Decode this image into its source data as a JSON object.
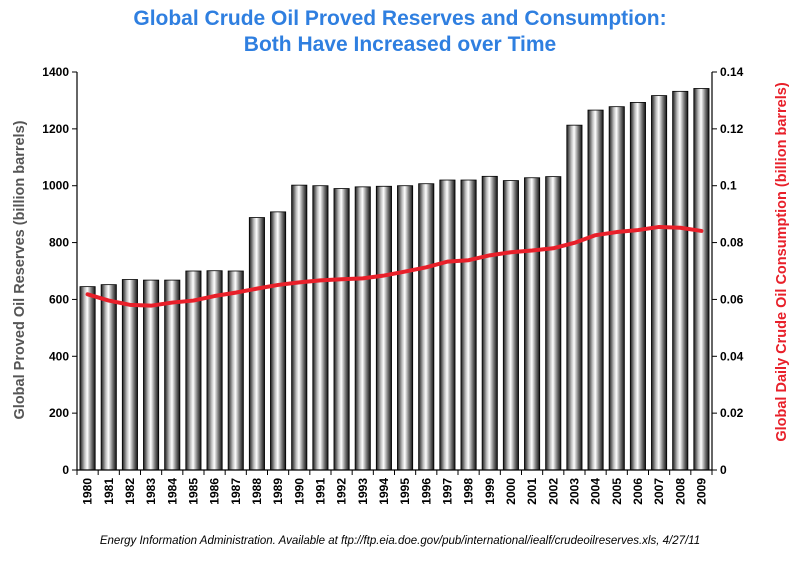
{
  "chart_data": {
    "type": "bar",
    "title_line1": "Global Crude Oil Proved Reserves and Consumption:",
    "title_line2": "Both Have Increased over Time",
    "categories": [
      "1980",
      "1981",
      "1982",
      "1983",
      "1984",
      "1985",
      "1986",
      "1987",
      "1988",
      "1989",
      "1990",
      "1991",
      "1992",
      "1993",
      "1994",
      "1995",
      "1996",
      "1997",
      "1998",
      "1999",
      "2000",
      "2001",
      "2002",
      "2003",
      "2004",
      "2005",
      "2006",
      "2007",
      "2008",
      "2009"
    ],
    "series": [
      {
        "name": "",
        "type": "bar",
        "axis": "left",
        "values": [
          645,
          652,
          670,
          668,
          668,
          700,
          701,
          700,
          888,
          908,
          1002,
          1000,
          990,
          996,
          998,
          1000,
          1007,
          1020,
          1020,
          1033,
          1018,
          1028,
          1032,
          1213,
          1266,
          1278,
          1293,
          1317,
          1332,
          1342
        ]
      },
      {
        "name": "",
        "type": "line",
        "axis": "right",
        "values": [
          0.0618,
          0.0596,
          0.0581,
          0.0578,
          0.0589,
          0.0596,
          0.0612,
          0.0624,
          0.0638,
          0.0651,
          0.066,
          0.0667,
          0.0671,
          0.0674,
          0.0684,
          0.0698,
          0.0713,
          0.0733,
          0.0738,
          0.0755,
          0.0766,
          0.0772,
          0.078,
          0.0799,
          0.0826,
          0.0837,
          0.0844,
          0.0855,
          0.0852,
          0.0841
        ]
      }
    ],
    "ylabel": "Global Proved Oil Reserves (billion barrels)",
    "y2label": "Global Daily Crude Oil Consumption (billion barrels)",
    "ylim": [
      0,
      1400
    ],
    "y2lim": [
      0,
      0.14
    ],
    "yticks": [
      "0",
      "200",
      "400",
      "600",
      "800",
      "1000",
      "1200",
      "1400"
    ],
    "y2ticks": [
      "0",
      "0.02",
      "0.04",
      "0.06",
      "0.08",
      "0.1",
      "0.12",
      "0.14"
    ],
    "grid": false,
    "bar_color": "#9a9a9a",
    "line_color": "#e8202a",
    "source": "Energy Information Administration. Available at ftp://ftp.eia.doe.gov/pub/international/iealf/crudeoilreserves.xls, 4/27/11"
  }
}
